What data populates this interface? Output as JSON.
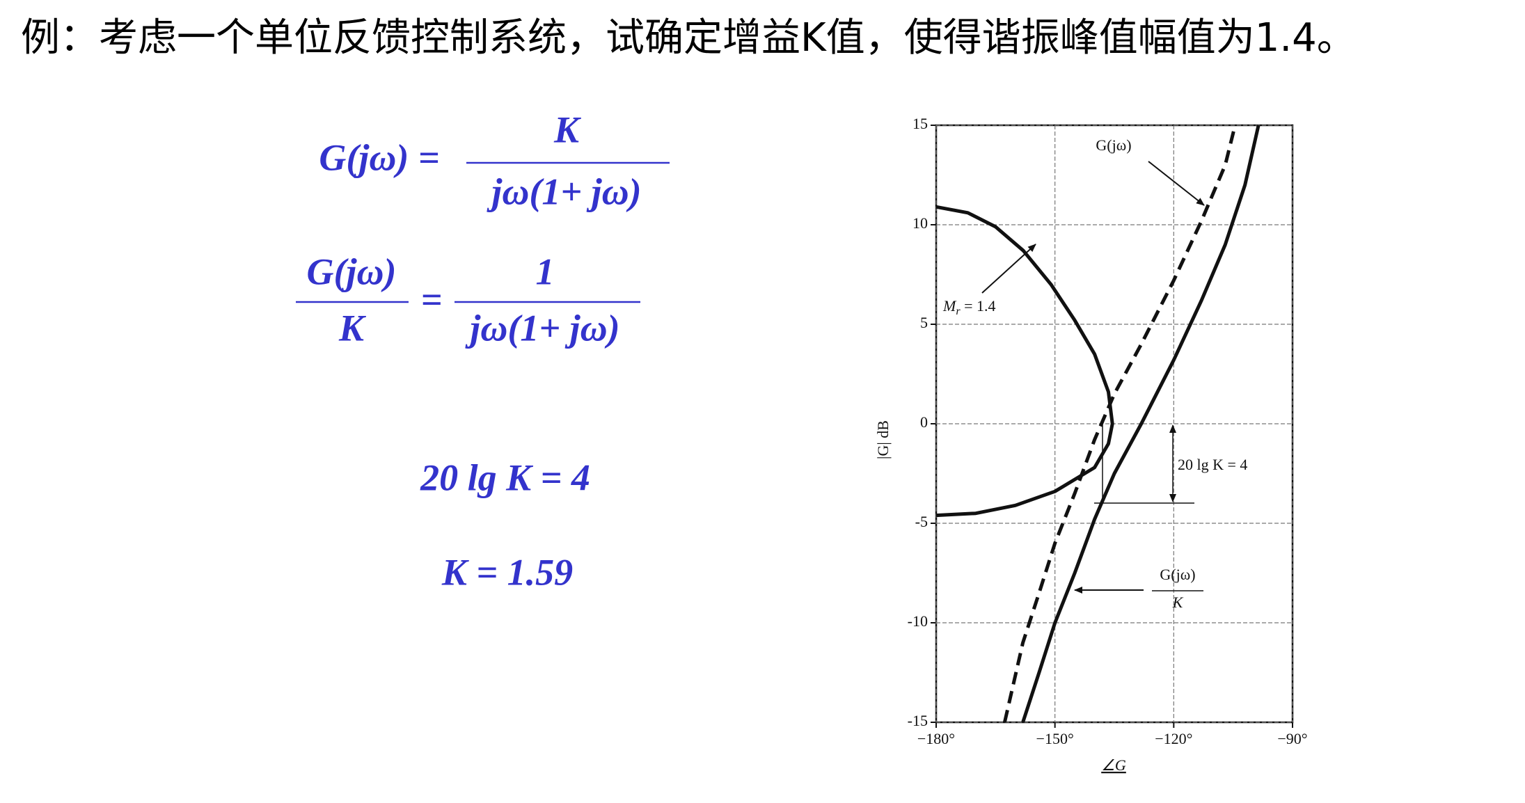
{
  "title": "例：考虑一个单位反馈控制系统，试确定增益K值，使得谐振峰值幅值为1.4。",
  "equations": [
    {
      "lhs": "G(jω) =",
      "num": "K",
      "den": "jω(1+ jω)"
    },
    {
      "lhs_num": "G(jω)",
      "lhs_den": "K",
      "eq": "=",
      "num": "1",
      "den": "jω(1+ jω)"
    },
    "20 lg K = 4",
    "K = 1.59"
  ],
  "chart_data": {
    "type": "line",
    "xlabel": "∠G",
    "ylabel": "|G| dB",
    "xlim": [
      -180,
      -90
    ],
    "ylim": [
      -15,
      15
    ],
    "xticks": [
      {
        "value": -180,
        "label": "−180°"
      },
      {
        "value": -150,
        "label": "−150°"
      },
      {
        "value": -120,
        "label": "−120°"
      },
      {
        "value": -90,
        "label": "−90°"
      }
    ],
    "yticks": [
      -15,
      -10,
      -5,
      0,
      5,
      10,
      15
    ],
    "grid": true,
    "series": [
      {
        "color": "#111111",
        "style": "solid",
        "x": [
          -180,
          -172,
          -165,
          -158,
          -151,
          -145,
          -140,
          -136.5,
          -135.5,
          -136.5,
          -140,
          -150,
          -160,
          -170,
          -180
        ],
        "values": [
          10.9,
          10.6,
          9.9,
          8.7,
          7.0,
          5.2,
          3.5,
          1.6,
          0,
          -1,
          -2.2,
          -3.4,
          -4.1,
          -4.5,
          -4.6
        ]
      },
      {
        "color": "#111111",
        "style": "solid",
        "x": [
          -158.1,
          -154,
          -150,
          -145,
          -140,
          -135,
          -128.2,
          -120,
          -113,
          -107,
          -102,
          -98.6
        ],
        "values": [
          -15,
          -12.5,
          -10,
          -7.5,
          -4.8,
          -2.5,
          0,
          3.2,
          6.2,
          9,
          12,
          15
        ]
      },
      {
        "color": "#111111",
        "style": "dashed",
        "x": [
          -162.7,
          -158.1,
          -154,
          -150,
          -145,
          -140,
          -135,
          -128.2,
          -120,
          -113,
          -107,
          -104.5
        ],
        "values": [
          -15,
          -11,
          -8.5,
          -6,
          -3.5,
          -0.8,
          1.5,
          4,
          7.2,
          10.2,
          13,
          15
        ]
      }
    ],
    "annotations": {
      "g": "G(jω)",
      "mr": {
        "base": "M",
        "sub": "r",
        "rest": " = 1.4"
      },
      "gain": "20 lg K = 4",
      "gk": {
        "num": "G(jω)",
        "den": "K"
      }
    }
  }
}
